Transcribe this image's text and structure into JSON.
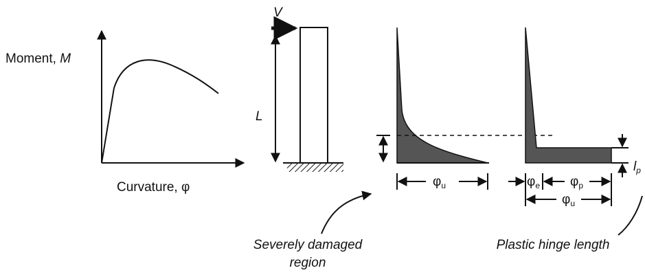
{
  "moment_curvature": {
    "y_label": {
      "text": "Moment, ",
      "symbol": "M"
    },
    "x_label": {
      "text": "Curvature, ",
      "symbol": "φ"
    }
  },
  "column": {
    "load": "V",
    "length": "L"
  },
  "actual_distribution": {
    "width": {
      "symbol": "φ",
      "subscript": "u"
    },
    "caption": [
      "Severely damaged",
      "region"
    ]
  },
  "idealized_distribution": {
    "elastic": {
      "symbol": "φ",
      "subscript": "e"
    },
    "plastic": {
      "symbol": "φ",
      "subscript": "p"
    },
    "ultimate": {
      "symbol": "φ",
      "subscript": "u"
    },
    "hinge": {
      "symbol": "l",
      "subscript": "p"
    },
    "caption": "Plastic hinge length"
  }
}
